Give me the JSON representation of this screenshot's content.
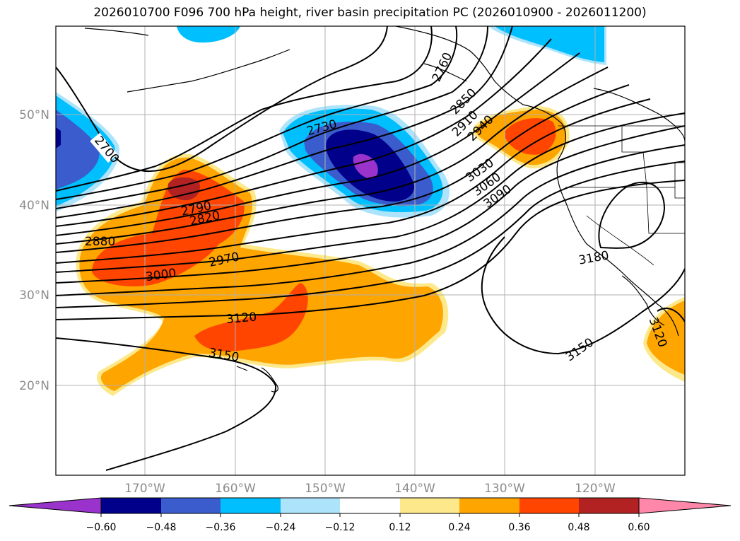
{
  "title": "2026010700 F096 700 hPa height, river basin precipitation PC (2026010900 - 2026011200)",
  "colors": {
    "neg_060": "#9933cc",
    "neg_048": "#00008b",
    "neg_036": "#3a5ccc",
    "neg_024": "#00bfff",
    "neg_012": "#aee4fb",
    "neutral": "#ffffff",
    "pos_012": "#fde98b",
    "pos_024": "#ffa500",
    "pos_036": "#ff4500",
    "pos_048": "#b22222",
    "pos_060": "#ff88aa"
  },
  "map": {
    "lat_labels": [
      "50°N",
      "40°N",
      "30°N",
      "20°N"
    ],
    "lon_labels": [
      "170°W",
      "160°W",
      "150°W",
      "140°W",
      "130°W",
      "120°W"
    ],
    "contour_labels": [
      "2700",
      "2730",
      "2760",
      "2790",
      "2820",
      "2850",
      "2880",
      "2910",
      "2940",
      "2970",
      "3000",
      "3030",
      "3060",
      "3090",
      "3120",
      "3150",
      "3150",
      "3180",
      "3120"
    ]
  },
  "colorbar": {
    "ticks": [
      "−0.60",
      "−0.48",
      "−0.36",
      "−0.24",
      "−0.12",
      "0.12",
      "0.24",
      "0.36",
      "0.48",
      "0.60"
    ]
  }
}
